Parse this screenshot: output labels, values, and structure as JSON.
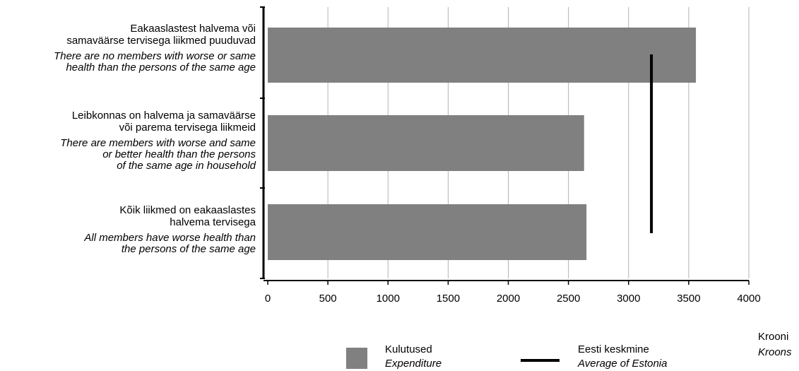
{
  "chart_data": {
    "type": "bar",
    "orientation": "horizontal",
    "categories": [
      {
        "label_et": "Eakaaslastest halvema või samaväärse tervisega liikmed puuduvad",
        "label_en": "There are no members with worse or same health than the persons of the same age",
        "lines_et": [
          "Eakaaslastest halvema või",
          "samaväärse tervisega liikmed puuduvad"
        ],
        "lines_en": [
          "There are no members with worse or same",
          "health than the persons of the same age"
        ]
      },
      {
        "label_et": "Leibkonnas on halvema ja samaväärse või parema tervisega liikmeid",
        "label_en": "There are members with worse and same or better health than the persons of the same age in household",
        "lines_et": [
          "Leibkonnas on halvema ja samaväärse",
          "või parema tervisega liikmeid"
        ],
        "lines_en": [
          "There are members with worse and same",
          "or better health than the persons",
          "of the same age in household"
        ]
      },
      {
        "label_et": "Kõik liikmed on eakaaslastes halvema tervisega",
        "label_en": "All members have worse health than the persons of the same age",
        "lines_et": [
          "Kõik liikmed on eakaaslastes",
          "halvema tervisega"
        ],
        "lines_en": [
          "All members have worse health than",
          "the persons of the same age"
        ]
      }
    ],
    "series": [
      {
        "name": "Kulutused",
        "name_en": "Expenditure",
        "values": [
          3560,
          2630,
          2650
        ],
        "color": "#808080"
      }
    ],
    "reference_line": {
      "name": "Eesti keskmine",
      "name_en": "Average of Estonia",
      "value": 3190,
      "color": "#000000"
    },
    "x_unit": "Krooni",
    "x_unit_en": "Kroons",
    "xlim": [
      0,
      4000
    ],
    "xticks": [
      0,
      500,
      1000,
      1500,
      2000,
      2500,
      3000,
      3500,
      4000
    ],
    "grid": true,
    "legend_position": "bottom"
  }
}
